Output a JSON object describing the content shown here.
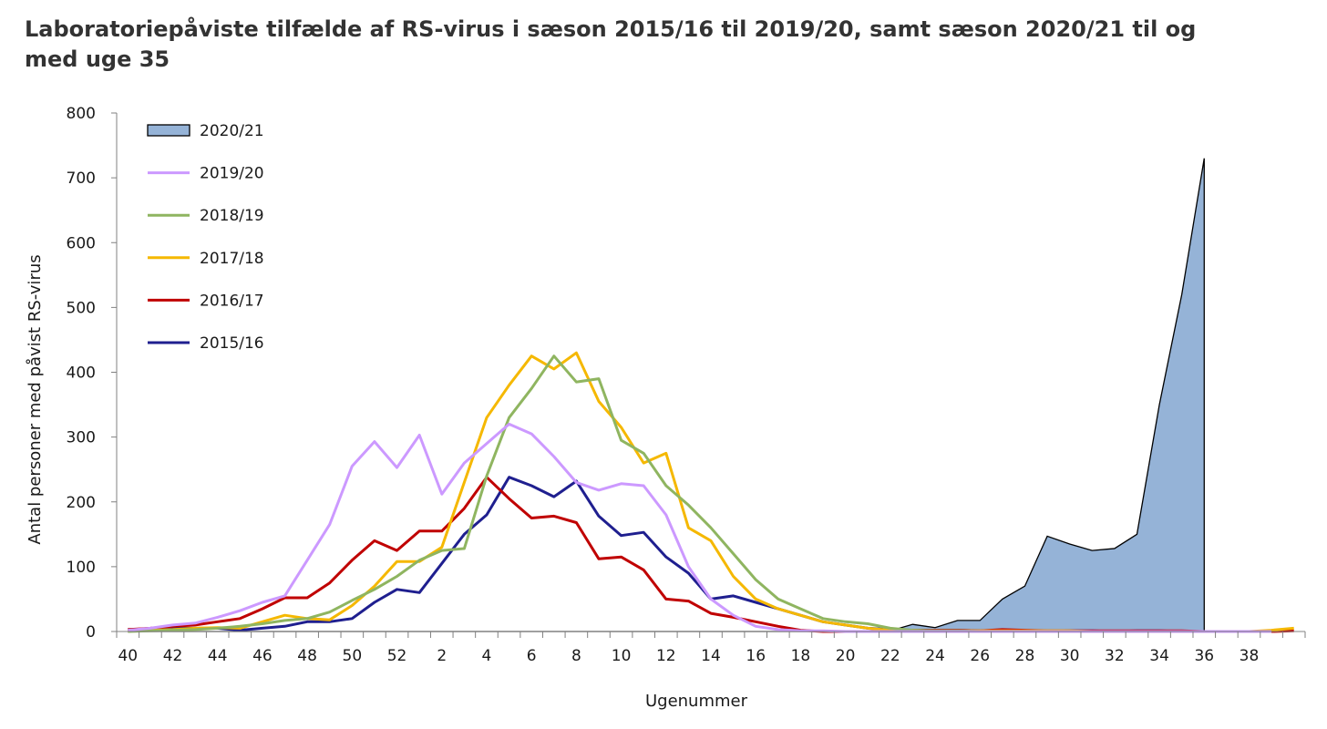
{
  "chart_data": {
    "type": "line",
    "title": "Laboratoriepåviste tilfælde af RS-virus i sæson 2015/16 til 2019/20, samt sæson 2020/21 til og med uge 35",
    "xlabel": "Ugenummer",
    "ylabel": "Antal personer med påvist RS-virus",
    "ylim": [
      0,
      800
    ],
    "yticks": [
      0,
      100,
      200,
      300,
      400,
      500,
      600,
      700,
      800
    ],
    "grid": false,
    "legend_position": "top-left",
    "x": [
      "40",
      "41",
      "42",
      "43",
      "44",
      "45",
      "46",
      "47",
      "48",
      "49",
      "50",
      "51",
      "52",
      "53",
      "1",
      "2",
      "3",
      "4",
      "5",
      "6",
      "7",
      "8",
      "9",
      "10",
      "11",
      "12",
      "13",
      "14",
      "15",
      "16",
      "17",
      "18",
      "19",
      "20",
      "21",
      "22",
      "23",
      "24",
      "25",
      "26",
      "27",
      "28",
      "29",
      "30",
      "31",
      "32",
      "33",
      "34",
      "35",
      "36",
      "37",
      "38",
      "39"
    ],
    "x_tick_labels": [
      "40",
      "42",
      "44",
      "46",
      "48",
      "50",
      "52",
      "2",
      "4",
      "6",
      "8",
      "10",
      "12",
      "14",
      "16",
      "18",
      "20",
      "22",
      "24",
      "26",
      "28",
      "30",
      "32",
      "34",
      "36",
      "38"
    ],
    "series": [
      {
        "name": "2020/21",
        "kind": "area",
        "color": "#95b3d7",
        "edge": "#000000",
        "values": [
          0,
          0,
          0,
          0,
          0,
          0,
          0,
          0,
          0,
          0,
          0,
          0,
          0,
          0,
          0,
          0,
          0,
          0,
          0,
          0,
          0,
          0,
          0,
          0,
          0,
          0,
          0,
          0,
          0,
          0,
          0,
          0,
          0,
          0,
          1,
          11,
          6,
          17,
          17,
          50,
          70,
          147,
          135,
          125,
          128,
          150,
          350,
          520,
          730,
          null,
          null,
          null,
          null
        ]
      },
      {
        "name": "2019/20",
        "kind": "line",
        "color": "#cc99ff",
        "values": [
          2,
          5,
          10,
          13,
          22,
          32,
          45,
          55,
          110,
          165,
          255,
          293,
          253,
          303,
          212,
          260,
          290,
          320,
          305,
          270,
          230,
          218,
          228,
          225,
          180,
          100,
          50,
          25,
          8,
          3,
          1,
          1,
          0,
          0,
          0,
          0,
          0,
          0,
          0,
          0,
          0,
          0,
          0,
          0,
          0,
          0,
          0,
          0,
          0,
          0,
          0,
          0,
          null
        ]
      },
      {
        "name": "2018/19",
        "kind": "line",
        "color": "#8fb560",
        "values": [
          0,
          1,
          2,
          3,
          5,
          8,
          12,
          17,
          20,
          30,
          48,
          65,
          85,
          110,
          125,
          128,
          240,
          330,
          375,
          425,
          385,
          390,
          295,
          275,
          225,
          195,
          160,
          120,
          80,
          50,
          35,
          20,
          15,
          12,
          5,
          2,
          1,
          1,
          0,
          0,
          0,
          0,
          0,
          0,
          0,
          0,
          0,
          0,
          0,
          0,
          0,
          0,
          null
        ]
      },
      {
        "name": "2017/18",
        "kind": "line",
        "color": "#f5b800",
        "values": [
          1,
          2,
          3,
          5,
          6,
          5,
          15,
          25,
          20,
          18,
          40,
          70,
          108,
          108,
          130,
          230,
          330,
          380,
          425,
          405,
          430,
          355,
          315,
          260,
          275,
          160,
          140,
          85,
          50,
          35,
          25,
          15,
          10,
          5,
          2,
          2,
          1,
          1,
          1,
          1,
          1,
          1,
          1,
          0,
          0,
          0,
          0,
          0,
          0,
          0,
          0,
          2,
          5
        ]
      },
      {
        "name": "2016/17",
        "kind": "line",
        "color": "#c00000",
        "values": [
          3,
          5,
          8,
          10,
          15,
          20,
          35,
          52,
          52,
          75,
          110,
          140,
          125,
          155,
          155,
          190,
          238,
          205,
          175,
          178,
          168,
          112,
          115,
          95,
          50,
          47,
          28,
          22,
          15,
          8,
          2,
          0,
          0,
          0,
          1,
          2,
          2,
          2,
          1,
          3,
          2,
          1,
          1,
          1,
          1,
          1,
          1,
          1,
          0,
          0,
          0,
          0,
          1
        ]
      },
      {
        "name": "2015/16",
        "kind": "line",
        "color": "#1f1f8f",
        "values": [
          3,
          3,
          5,
          5,
          5,
          2,
          5,
          8,
          15,
          15,
          20,
          45,
          65,
          60,
          105,
          150,
          180,
          238,
          225,
          208,
          232,
          178,
          148,
          153,
          115,
          90,
          50,
          55,
          45,
          35,
          25,
          15,
          10,
          5,
          3,
          2,
          2,
          2,
          1,
          1,
          0,
          0,
          1,
          1,
          0,
          1,
          1,
          0,
          0,
          0,
          0,
          0,
          null
        ]
      }
    ]
  }
}
